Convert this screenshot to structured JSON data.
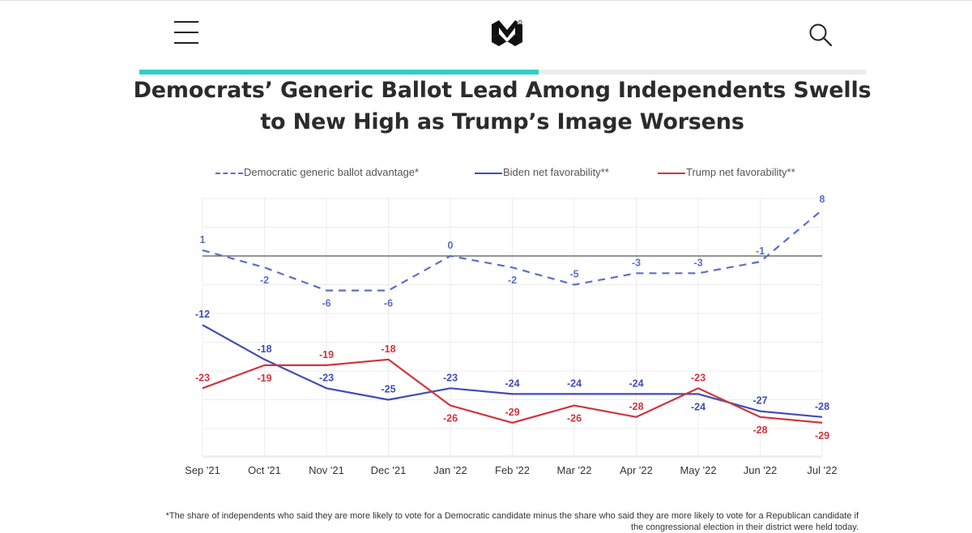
{
  "header": {
    "menu_icon": "hamburger-menu-icon",
    "logo_icon": "morning-consult-logo-icon",
    "search_icon": "magnifier-search-icon",
    "reading_progress": 0.55
  },
  "colors": {
    "accent": "#2fcfc6",
    "generic_ballot": "#5b6fc9",
    "biden": "#3f4db6",
    "trump": "#d0353d",
    "baseline": "#555555"
  },
  "chart_data": {
    "type": "line",
    "title": "Democrats’ Generic Ballot Lead Among Independents Swells to New High as Trump’s Image Worsens",
    "categories": [
      "Sep '21",
      "Oct '21",
      "Nov '21",
      "Dec '21",
      "Jan '22",
      "Feb '22",
      "Mar '22",
      "Apr '22",
      "May '22",
      "Jun '22",
      "Jul '22"
    ],
    "series": [
      {
        "name": "Democratic generic ballot advantage*",
        "style": "dashed",
        "values": [
          1,
          -2,
          -6,
          -6,
          0,
          -2,
          -5,
          -3,
          -3,
          -1,
          8
        ]
      },
      {
        "name": "Biden net favorability**",
        "style": "solid",
        "values": [
          -12,
          -18,
          -23,
          -25,
          -23,
          -24,
          -24,
          -24,
          -24,
          -27,
          -28
        ]
      },
      {
        "name": "Trump net favorability**",
        "style": "solid",
        "values": [
          -23,
          -19,
          -19,
          -18,
          -26,
          -29,
          -26,
          -28,
          -23,
          -28,
          -29
        ]
      }
    ],
    "ylim": [
      -35,
      10
    ],
    "reference_line": 0,
    "grid": "vertical and horizontal gridlines",
    "legend_position": "top",
    "xlabel": "",
    "ylabel": "",
    "footnote": "*The share of independents who said they are more likely to vote for a Democratic candidate minus the share who said they are more likely to vote for a Republican candidate if the congressional election in their district were held today."
  }
}
